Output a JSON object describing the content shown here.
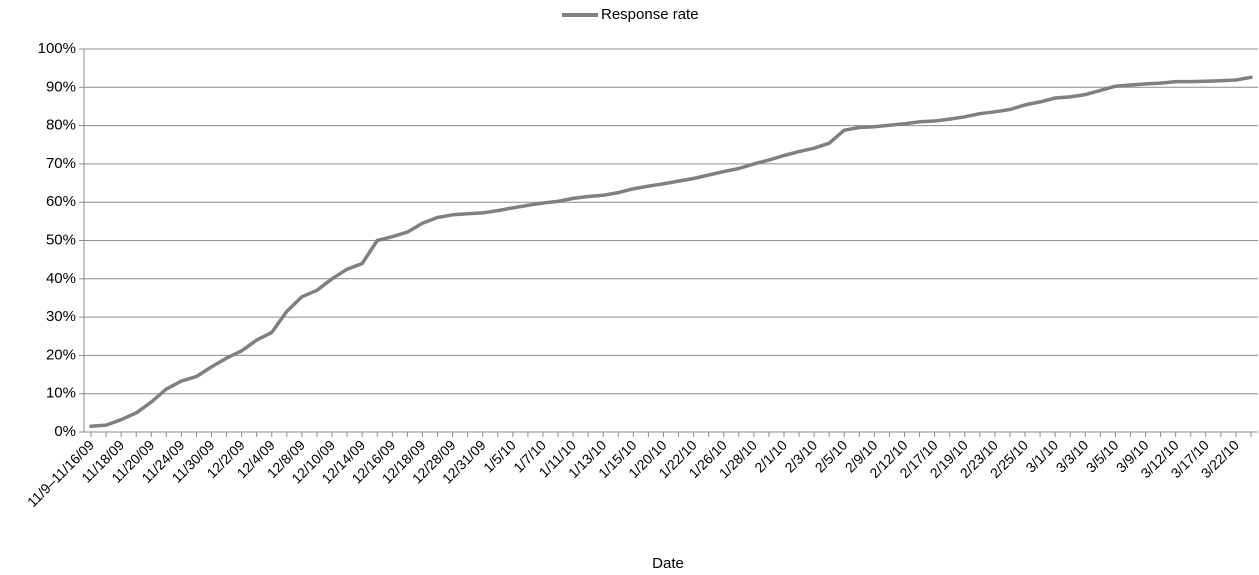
{
  "chart_data": {
    "type": "line",
    "xlabel": "Date",
    "ylabel": "",
    "ylim": [
      0,
      100
    ],
    "y_ticks": [
      "0%",
      "10%",
      "20%",
      "30%",
      "40%",
      "50%",
      "60%",
      "70%",
      "80%",
      "90%",
      "100%"
    ],
    "grid": true,
    "legend_position": "top-center",
    "x_tick_labels": [
      "11/9–11/16/09",
      "11/18/09",
      "11/20/09",
      "11/24/09",
      "11/30/09",
      "12/2/09",
      "12/4/09",
      "12/8/09",
      "12/10/09",
      "12/14/09",
      "12/16/09",
      "12/18/09",
      "12/28/09",
      "12/31/09",
      "1/5/10",
      "1/7/10",
      "1/11/10",
      "1/13/10",
      "1/15/10",
      "1/20/10",
      "1/22/10",
      "1/26/10",
      "1/28/10",
      "2/1/10",
      "2/3/10",
      "2/5/10",
      "2/9/10",
      "2/12/10",
      "2/17/10",
      "2/19/10",
      "2/23/10",
      "2/25/10",
      "3/1/10",
      "3/3/10",
      "3/5/10",
      "3/9/10",
      "3/12/10",
      "3/17/10",
      "3/22/10"
    ],
    "series": [
      {
        "name": "Response rate",
        "color": "#808080",
        "values": [
          1.5,
          1.8,
          3.2,
          5.0,
          7.8,
          11.2,
          13.3,
          14.5,
          17.0,
          19.3,
          21.2,
          24.0,
          26.0,
          31.5,
          35.3,
          37.0,
          40.0,
          42.5,
          44.0,
          50.0,
          51.0,
          52.2,
          54.5,
          56.0,
          56.7,
          57.0,
          57.2,
          57.8,
          58.5,
          59.2,
          59.8,
          60.2,
          61.0,
          61.5,
          61.8,
          62.5,
          63.5,
          64.2,
          64.8,
          65.5,
          66.2,
          67.1,
          68.0,
          68.8,
          70.0,
          71.0,
          72.2,
          73.2,
          74.1,
          75.4,
          78.8,
          79.5,
          79.7,
          80.1,
          80.5,
          81.0,
          81.2,
          81.7,
          82.3,
          83.1,
          83.6,
          84.2,
          85.4,
          86.2,
          87.2,
          87.5,
          88.1,
          89.2,
          90.3,
          90.6,
          90.9,
          91.1,
          91.5,
          91.5,
          91.6,
          91.7,
          91.9,
          92.6
        ]
      }
    ]
  }
}
